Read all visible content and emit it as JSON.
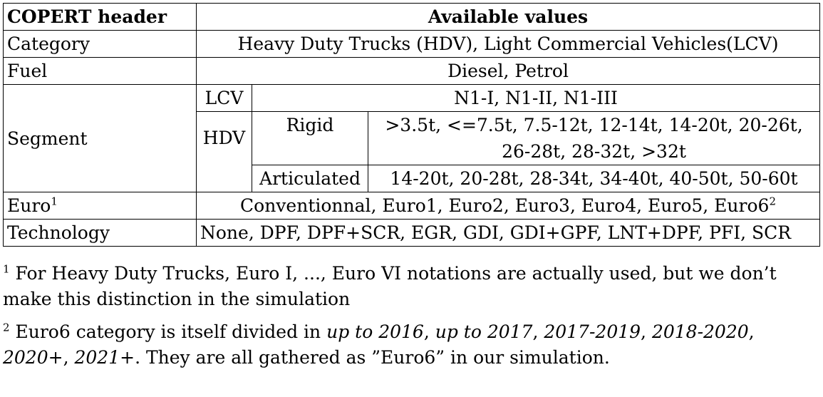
{
  "table": {
    "header": {
      "col1": "COPERT header",
      "col2": "Available values"
    },
    "category": {
      "label": "Category",
      "value": "Heavy Duty Trucks (HDV), Light Commercial Vehicles(LCV)"
    },
    "fuel": {
      "label": "Fuel",
      "value": "Diesel, Petrol"
    },
    "segment": {
      "label": "Segment",
      "lcv_label": "LCV",
      "lcv_value": "N1-I, N1-II, N1-III",
      "hdv_label": "HDV",
      "rigid_label": "Rigid",
      "rigid_value": ">3.5t, <=7.5t, 7.5-12t, 12-14t, 14-20t, 20-26t, 26-28t, 28-32t, >32t",
      "articulated_label": "Articulated",
      "articulated_value": "14-20t, 20-28t, 28-34t, 34-40t, 40-50t, 50-60t"
    },
    "euro": {
      "label": "Euro",
      "label_mark": "1",
      "value": "Conventionnal, Euro1, Euro2, Euro3, Euro4, Euro5, Euro6",
      "value_mark": "2"
    },
    "technology": {
      "label": "Technology",
      "value": "None, DPF, DPF+SCR, EGR, GDI, GDI+GPF, LNT+DPF, PFI, SCR"
    }
  },
  "footnotes": {
    "note1": {
      "mark": "1",
      "text": "For Heavy Duty Trucks, Euro I, ..., Euro VI notations are actually used, but we don’t make this distinction in the simulation"
    },
    "note2": {
      "mark": "2",
      "pre": "Euro6 category is itself divided in",
      "it1": "up to 2016",
      "it2": "up to 2017",
      "it3": "2017-2019",
      "it4": "2018-2020",
      "it5": "2020+",
      "it6": "2021+",
      "post": ". They are all gathered as ”Euro6” in our simulation."
    }
  }
}
